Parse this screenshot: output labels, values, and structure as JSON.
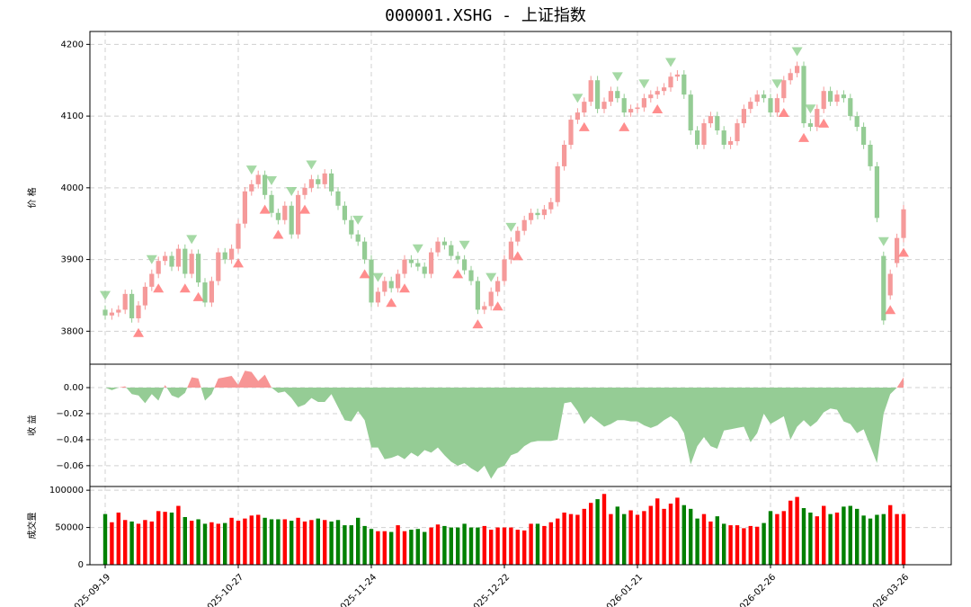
{
  "chart_data": [
    {
      "type": "candlestick",
      "title": "000001.XSHG - 上证指数",
      "ylabel": "价 格",
      "open": [
        3830,
        3822,
        3826,
        3830,
        3852,
        3818,
        3836,
        3862,
        3880,
        3898,
        3905,
        3890,
        3915,
        3880,
        3908,
        3868,
        3840,
        3870,
        3910,
        3900,
        3915,
        3950,
        3995,
        4005,
        4018,
        3990,
        3965,
        3955,
        3975,
        3935,
        3990,
        4000,
        4012,
        4005,
        4020,
        3995,
        3975,
        3955,
        3935,
        3925,
        3900,
        3840,
        3855,
        3870,
        3860,
        3880,
        3900,
        3895,
        3890,
        3880,
        3910,
        3925,
        3920,
        3905,
        3900,
        3885,
        3870,
        3830,
        3835,
        3855,
        3870,
        3900,
        3925,
        3940,
        3955,
        3965,
        3962,
        3970,
        3980,
        4030,
        4060,
        4095,
        4105,
        4120,
        4150,
        4110,
        4120,
        4135,
        4125,
        4105,
        4110,
        4112,
        4125,
        4130,
        4135,
        4140,
        4155,
        4158,
        4130,
        4080,
        4060,
        4090,
        4100,
        4080,
        4060,
        4065,
        4090,
        4110,
        4120,
        4130,
        4125,
        4105,
        4125,
        4150,
        4160,
        4170,
        4090,
        4085,
        4110,
        4135,
        4120,
        4130,
        4125,
        4100,
        4085,
        4060,
        4030,
        3905,
        3850,
        3895,
        3930
      ],
      "high": [
        3836,
        3832,
        3836,
        3858,
        3858,
        3842,
        3868,
        3886,
        3904,
        3911,
        3911,
        3921,
        3921,
        3914,
        3914,
        3874,
        3876,
        3916,
        3916,
        3921,
        3956,
        4001,
        4011,
        4024,
        4024,
        3996,
        3971,
        3981,
        3981,
        3996,
        4006,
        4018,
        4018,
        4026,
        4026,
        4001,
        3981,
        3961,
        3941,
        3931,
        3906,
        3861,
        3876,
        3876,
        3886,
        3906,
        3906,
        3901,
        3896,
        3916,
        3931,
        3931,
        3926,
        3911,
        3906,
        3891,
        3876,
        3841,
        3861,
        3876,
        3906,
        3931,
        3946,
        3961,
        3971,
        3971,
        3976,
        3986,
        4036,
        4066,
        4101,
        4111,
        4126,
        4156,
        4156,
        4126,
        4141,
        4141,
        4131,
        4116,
        4118,
        4131,
        4136,
        4141,
        4146,
        4161,
        4164,
        4164,
        4136,
        4086,
        4096,
        4106,
        4106,
        4086,
        4071,
        4096,
        4116,
        4126,
        4136,
        4136,
        4131,
        4131,
        4156,
        4166,
        4176,
        4176,
        4096,
        4116,
        4141,
        4141,
        4136,
        4136,
        4131,
        4106,
        4091,
        4066,
        4036,
        3911,
        3886,
        3936,
        3976
      ],
      "low": [
        3816,
        3816,
        3820,
        3824,
        3812,
        3812,
        3830,
        3856,
        3874,
        3892,
        3884,
        3884,
        3874,
        3874,
        3862,
        3834,
        3834,
        3864,
        3894,
        3894,
        3909,
        3944,
        3989,
        3999,
        3984,
        3959,
        3949,
        3949,
        3929,
        3929,
        3984,
        3994,
        3999,
        3999,
        3989,
        3969,
        3949,
        3929,
        3919,
        3894,
        3834,
        3834,
        3849,
        3854,
        3854,
        3874,
        3889,
        3884,
        3874,
        3874,
        3904,
        3914,
        3899,
        3894,
        3879,
        3864,
        3824,
        3824,
        3829,
        3849,
        3864,
        3894,
        3919,
        3934,
        3949,
        3956,
        3956,
        3964,
        3974,
        4024,
        4054,
        4089,
        4099,
        4114,
        4104,
        4104,
        4114,
        4119,
        4099,
        4099,
        4104,
        4106,
        4119,
        4124,
        4129,
        4134,
        4149,
        4124,
        4074,
        4054,
        4054,
        4084,
        4074,
        4054,
        4054,
        4059,
        4084,
        4104,
        4114,
        4119,
        4099,
        4099,
        4119,
        4144,
        4154,
        4084,
        4079,
        4079,
        4104,
        4114,
        4114,
        4119,
        4094,
        4079,
        4054,
        4024,
        3952,
        3809,
        3844,
        3889,
        3924
      ],
      "close": [
        3822,
        3826,
        3830,
        3852,
        3818,
        3836,
        3862,
        3880,
        3898,
        3905,
        3890,
        3915,
        3880,
        3908,
        3868,
        3840,
        3870,
        3910,
        3900,
        3915,
        3950,
        3995,
        4005,
        4018,
        3990,
        3965,
        3955,
        3975,
        3935,
        3990,
        4000,
        4012,
        4005,
        4020,
        3995,
        3975,
        3955,
        3935,
        3925,
        3900,
        3840,
        3855,
        3870,
        3860,
        3880,
        3900,
        3895,
        3890,
        3880,
        3910,
        3925,
        3920,
        3905,
        3900,
        3885,
        3870,
        3830,
        3835,
        3855,
        3870,
        3900,
        3925,
        3940,
        3955,
        3965,
        3962,
        3970,
        3980,
        4030,
        4060,
        4095,
        4105,
        4120,
        4150,
        4110,
        4120,
        4135,
        4125,
        4105,
        4110,
        4112,
        4125,
        4130,
        4135,
        4140,
        4155,
        4158,
        4130,
        4080,
        4060,
        4090,
        4100,
        4080,
        4060,
        4065,
        4090,
        4110,
        4120,
        4130,
        4125,
        4105,
        4125,
        4150,
        4160,
        4170,
        4090,
        4085,
        4110,
        4135,
        4120,
        4130,
        4125,
        4100,
        4085,
        4060,
        4030,
        3958,
        3815,
        3880,
        3930,
        3970
      ],
      "buy_signals": [
        5,
        8,
        12,
        14,
        20,
        24,
        26,
        30,
        39,
        43,
        45,
        53,
        56,
        59,
        62,
        72,
        78,
        83,
        102,
        105,
        108,
        118,
        120
      ],
      "sell_signals": [
        0,
        7,
        13,
        22,
        25,
        28,
        31,
        38,
        41,
        47,
        54,
        58,
        61,
        71,
        77,
        81,
        85,
        101,
        104,
        106,
        117
      ],
      "up_color": "#f59a9a",
      "down_color": "#94cc94",
      "buy_color": "#ff7070",
      "sell_color": "#8fcf8f",
      "ylim": [
        3754,
        4218
      ],
      "yticks": [
        3800,
        3900,
        4000,
        4100,
        4200
      ],
      "grid": true
    },
    {
      "type": "area",
      "ylabel": "收 益",
      "values": [
        0.0,
        -0.002,
        0.0,
        0.001,
        -0.005,
        -0.006,
        -0.012,
        -0.005,
        -0.01,
        0.002,
        -0.006,
        -0.008,
        -0.004,
        0.008,
        0.007,
        -0.01,
        -0.005,
        0.007,
        0.008,
        0.009,
        0.002,
        0.013,
        0.012,
        0.005,
        0.01,
        0.0,
        -0.004,
        -0.003,
        -0.008,
        -0.015,
        -0.013,
        -0.008,
        -0.011,
        -0.011,
        -0.005,
        -0.015,
        -0.025,
        -0.026,
        -0.018,
        -0.025,
        -0.046,
        -0.046,
        -0.055,
        -0.054,
        -0.052,
        -0.055,
        -0.05,
        -0.053,
        -0.048,
        -0.05,
        -0.046,
        -0.052,
        -0.057,
        -0.06,
        -0.058,
        -0.062,
        -0.065,
        -0.06,
        -0.07,
        -0.062,
        -0.06,
        -0.052,
        -0.05,
        -0.045,
        -0.042,
        -0.041,
        -0.041,
        -0.041,
        -0.04,
        -0.012,
        -0.011,
        -0.018,
        -0.028,
        -0.022,
        -0.026,
        -0.03,
        -0.028,
        -0.025,
        -0.025,
        -0.026,
        -0.026,
        -0.029,
        -0.031,
        -0.029,
        -0.025,
        -0.022,
        -0.026,
        -0.035,
        -0.059,
        -0.045,
        -0.038,
        -0.045,
        -0.047,
        -0.033,
        -0.032,
        -0.031,
        -0.03,
        -0.042,
        -0.035,
        -0.02,
        -0.028,
        -0.025,
        -0.022,
        -0.04,
        -0.03,
        -0.025,
        -0.03,
        -0.026,
        -0.019,
        -0.016,
        -0.017,
        -0.026,
        -0.028,
        -0.035,
        -0.032,
        -0.045,
        -0.058,
        -0.02,
        -0.005,
        0.0,
        0.008
      ],
      "positive_color": "#f79595",
      "negative_color": "#95cc95",
      "ylim": [
        -0.076,
        0.018
      ],
      "yticks": [
        {
          "value": -0.06,
          "label": "−0.06"
        },
        {
          "value": -0.04,
          "label": "−0.04"
        },
        {
          "value": -0.02,
          "label": "−0.02"
        },
        {
          "value": 0,
          "label": "0.00"
        }
      ],
      "grid": true
    },
    {
      "type": "bar",
      "ylabel": "成交量",
      "categories": [
        "2025-09-19",
        null,
        null,
        null,
        null,
        null,
        null,
        null,
        null,
        null,
        null,
        null,
        null,
        null,
        null,
        null,
        null,
        null,
        null,
        null,
        "2025-10-27",
        null,
        null,
        null,
        null,
        null,
        null,
        null,
        null,
        null,
        null,
        null,
        null,
        null,
        null,
        null,
        null,
        null,
        null,
        null,
        "2025-11-24",
        null,
        null,
        null,
        null,
        null,
        null,
        null,
        null,
        null,
        null,
        null,
        null,
        null,
        null,
        null,
        null,
        null,
        null,
        null,
        "2025-12-22",
        null,
        null,
        null,
        null,
        null,
        null,
        null,
        null,
        null,
        null,
        null,
        null,
        null,
        null,
        null,
        null,
        null,
        null,
        null,
        "2026-01-21",
        null,
        null,
        null,
        null,
        null,
        null,
        null,
        null,
        null,
        null,
        null,
        null,
        null,
        null,
        null,
        null,
        null,
        null,
        null,
        "2026-02-26",
        null,
        null,
        null,
        null,
        null,
        null,
        null,
        null,
        null,
        null,
        null,
        null,
        null,
        null,
        null,
        null,
        null,
        null,
        null,
        "2026-03-26"
      ],
      "values": [
        68000,
        57000,
        70000,
        60000,
        58000,
        55000,
        60000,
        58000,
        72000,
        71000,
        70000,
        79000,
        64000,
        59000,
        61000,
        55000,
        57000,
        55000,
        56000,
        63000,
        59000,
        62000,
        66000,
        67000,
        63000,
        61000,
        61000,
        61000,
        59000,
        63000,
        58000,
        60000,
        62000,
        60000,
        58000,
        60000,
        53000,
        53000,
        63000,
        52000,
        48000,
        45000,
        45000,
        44000,
        53000,
        45000,
        47000,
        48000,
        44000,
        50000,
        54000,
        52000,
        50000,
        50000,
        55000,
        50000,
        50000,
        52000,
        47000,
        50000,
        50000,
        50000,
        47000,
        46000,
        55000,
        55000,
        52000,
        57000,
        62000,
        70000,
        68000,
        67000,
        75000,
        83000,
        88000,
        95000,
        68000,
        78000,
        68000,
        73000,
        67000,
        72000,
        79000,
        89000,
        75000,
        82000,
        90000,
        80000,
        75000,
        62000,
        68000,
        58000,
        65000,
        55000,
        53000,
        53000,
        49000,
        52000,
        51000,
        56000,
        72000,
        68000,
        72000,
        86000,
        91000,
        76000,
        70000,
        65000,
        79000,
        68000,
        70000,
        78000,
        79000,
        75000,
        66000,
        62000,
        67000,
        68000,
        80000,
        68000,
        68000
      ],
      "up_color": "#ff0000",
      "down_color": "#008000",
      "ylim": [
        0,
        105000
      ],
      "yticks": [
        0,
        50000,
        100000
      ],
      "grid": true
    }
  ]
}
